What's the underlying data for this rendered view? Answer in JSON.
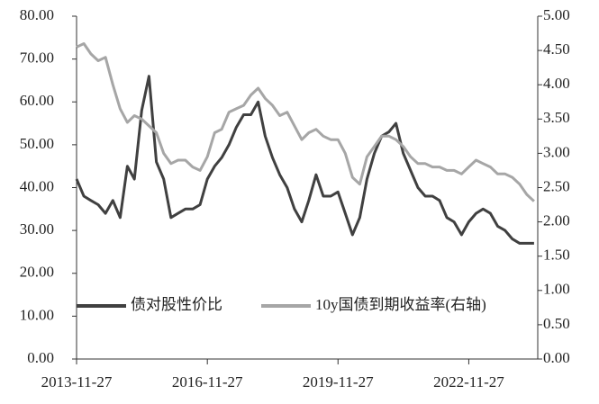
{
  "chart_data": {
    "type": "line",
    "x": [
      "2013-11-27",
      "2014-01-27",
      "2014-03-27",
      "2014-05-27",
      "2014-07-27",
      "2014-09-27",
      "2014-11-27",
      "2015-01-27",
      "2015-03-27",
      "2015-05-27",
      "2015-07-27",
      "2015-09-27",
      "2015-11-27",
      "2016-01-27",
      "2016-03-27",
      "2016-05-27",
      "2016-07-27",
      "2016-09-27",
      "2016-11-27",
      "2017-01-27",
      "2017-03-27",
      "2017-05-27",
      "2017-07-27",
      "2017-09-27",
      "2017-11-27",
      "2018-01-27",
      "2018-03-27",
      "2018-05-27",
      "2018-07-27",
      "2018-09-27",
      "2018-11-27",
      "2019-01-27",
      "2019-03-27",
      "2019-05-27",
      "2019-07-27",
      "2019-09-27",
      "2019-11-27",
      "2020-01-27",
      "2020-03-27",
      "2020-05-27",
      "2020-07-27",
      "2020-09-27",
      "2020-11-27",
      "2021-01-27",
      "2021-03-27",
      "2021-05-27",
      "2021-07-27",
      "2021-09-27",
      "2021-11-27",
      "2022-01-27",
      "2022-03-27",
      "2022-05-27",
      "2022-07-27",
      "2022-09-27",
      "2022-11-27",
      "2023-01-27",
      "2023-03-27",
      "2023-05-27",
      "2023-07-27",
      "2023-09-27",
      "2023-11-27",
      "2024-01-27",
      "2024-03-27",
      "2024-05-27"
    ],
    "series": [
      {
        "name": "债对股性价比",
        "color": "#404040",
        "axis": "y",
        "values": [
          42,
          38,
          37,
          36,
          34,
          37,
          33,
          45,
          42,
          58,
          66,
          46,
          42,
          33,
          34,
          35,
          35,
          36,
          42,
          45,
          47,
          50,
          54,
          57,
          57,
          60,
          52,
          47,
          43,
          40,
          35,
          32,
          37,
          43,
          38,
          38,
          39,
          34,
          29,
          33,
          42,
          48,
          52,
          53,
          55,
          48,
          44,
          40,
          38,
          38,
          37,
          33,
          32,
          29,
          32,
          34,
          35,
          34,
          31,
          30,
          28,
          27,
          27,
          27
        ]
      },
      {
        "name": "10y国债到期收益率(右轴)",
        "color": "#a6a6a6",
        "axis": "y2",
        "values": [
          4.55,
          4.6,
          4.45,
          4.35,
          4.4,
          4.0,
          3.65,
          3.45,
          3.55,
          3.5,
          3.4,
          3.3,
          3.0,
          2.85,
          2.9,
          2.9,
          2.8,
          2.75,
          2.95,
          3.3,
          3.35,
          3.6,
          3.65,
          3.7,
          3.85,
          3.95,
          3.8,
          3.7,
          3.55,
          3.6,
          3.4,
          3.2,
          3.3,
          3.35,
          3.25,
          3.2,
          3.2,
          3.0,
          2.65,
          2.55,
          2.95,
          3.1,
          3.25,
          3.25,
          3.2,
          3.1,
          2.95,
          2.85,
          2.85,
          2.8,
          2.8,
          2.75,
          2.75,
          2.7,
          2.8,
          2.9,
          2.85,
          2.8,
          2.7,
          2.7,
          2.65,
          2.55,
          2.4,
          2.3
        ]
      }
    ],
    "xlim": [
      "2013-11-27",
      "2024-06-27"
    ],
    "xticks": [
      "2013-11-27",
      "2016-11-27",
      "2019-11-27",
      "2022-11-27"
    ],
    "ylim": [
      0,
      80
    ],
    "yticks": [
      {
        "value": 0,
        "label": "0.00"
      },
      {
        "value": 10,
        "label": "10.00"
      },
      {
        "value": 20,
        "label": "20.00"
      },
      {
        "value": 30,
        "label": "30.00"
      },
      {
        "value": 40,
        "label": "40.00"
      },
      {
        "value": 50,
        "label": "50.00"
      },
      {
        "value": 60,
        "label": "60.00"
      },
      {
        "value": 70,
        "label": "70.00"
      },
      {
        "value": 80,
        "label": "80.00"
      }
    ],
    "y2lim": [
      0,
      5
    ],
    "y2ticks": [
      {
        "value": 0,
        "label": "0.00"
      },
      {
        "value": 0.5,
        "label": "0.50"
      },
      {
        "value": 1,
        "label": "1.00"
      },
      {
        "value": 1.5,
        "label": "1.50"
      },
      {
        "value": 2,
        "label": "2.00"
      },
      {
        "value": 2.5,
        "label": "2.50"
      },
      {
        "value": 3,
        "label": "3.00"
      },
      {
        "value": 3.5,
        "label": "3.50"
      },
      {
        "value": 4,
        "label": "4.00"
      },
      {
        "value": 4.5,
        "label": "4.50"
      },
      {
        "value": 5,
        "label": "5.00"
      }
    ],
    "grid": false,
    "legend": "lower-left"
  }
}
